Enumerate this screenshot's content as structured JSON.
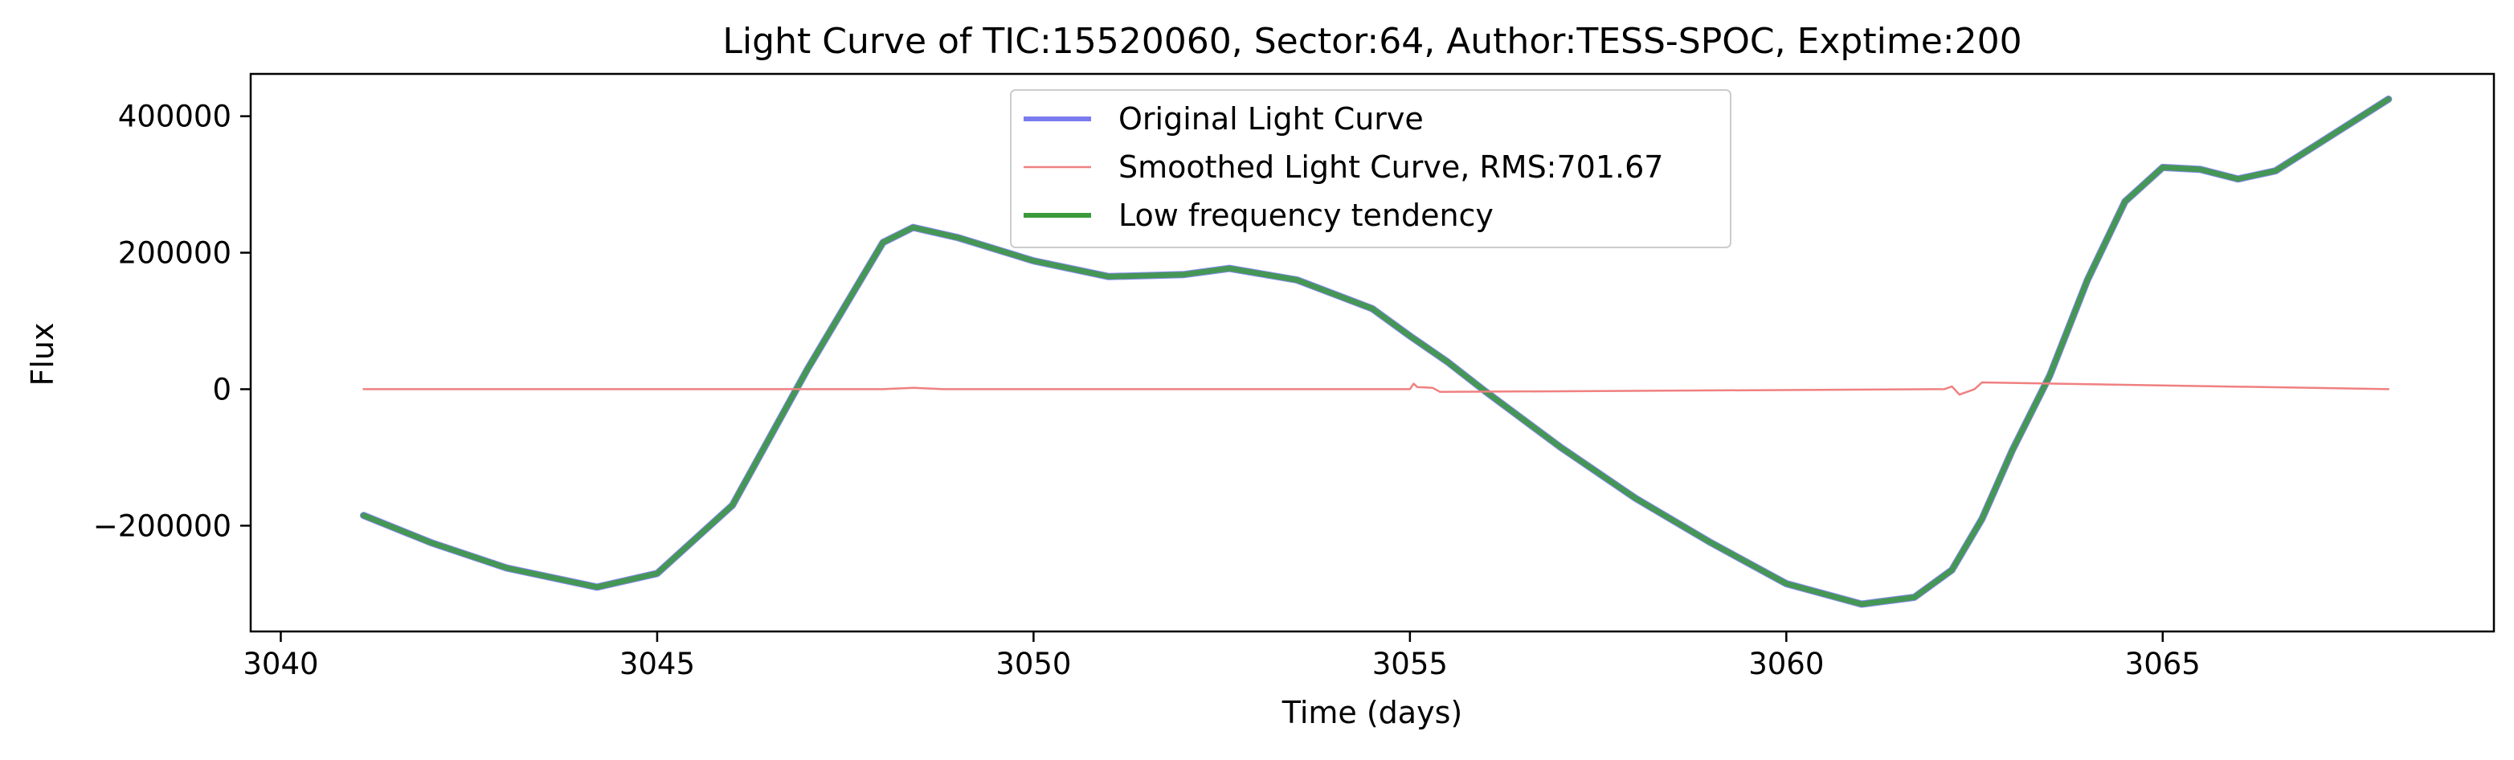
{
  "chart_data": {
    "type": "line",
    "title": "Light Curve of TIC:15520060, Sector:64, Author:TESS-SPOC, Exptime:200",
    "xlabel": "Time (days)",
    "ylabel": "Flux",
    "xlim": [
      3039.6,
      3069.4
    ],
    "ylim": [
      -355000,
      462000
    ],
    "x_ticks": [
      3040,
      3045,
      3050,
      3055,
      3060,
      3065
    ],
    "x_tick_labels": [
      "3040",
      "3045",
      "3050",
      "3055",
      "3060",
      "3065"
    ],
    "y_ticks": [
      -200000,
      0,
      200000,
      400000
    ],
    "y_tick_labels": [
      "−200000",
      "0",
      "200000",
      "400000"
    ],
    "grid": false,
    "legend_position": "top-center",
    "series": [
      {
        "name": "Original Light Curve",
        "color": "#7b7bf0",
        "x": [
          3041.1,
          3042.0,
          3043.0,
          3044.2,
          3045.0,
          3046.0,
          3047.0,
          3048.0,
          3048.4,
          3049.0,
          3050.0,
          3051.0,
          3052.0,
          3052.6,
          3053.5,
          3054.5,
          3055.0,
          3055.5,
          3056.0,
          3057.0,
          3058.0,
          3059.0,
          3060.0,
          3061.0,
          3061.7,
          3062.2,
          3062.6,
          3063.0,
          3063.5,
          3064.0,
          3064.5,
          3065.0,
          3065.5,
          3066.0,
          3066.5,
          3067.0,
          3067.5,
          3068.0
        ],
        "values": [
          -185000,
          -225000,
          -262000,
          -290000,
          -270000,
          -170000,
          30000,
          215000,
          237000,
          222000,
          188000,
          165000,
          168000,
          177000,
          160000,
          118000,
          78000,
          40000,
          -3000,
          -85000,
          -160000,
          -225000,
          -285000,
          -315000,
          -305000,
          -265000,
          -190000,
          -90000,
          20000,
          160000,
          275000,
          325000,
          322000,
          308000,
          320000,
          355000,
          390000,
          425000
        ]
      },
      {
        "name": "Smoothed Light Curve, RMS:701.67",
        "color": "#f08080",
        "x": [
          3041.1,
          3048.0,
          3048.4,
          3048.8,
          3055.0,
          3055.05,
          3055.1,
          3055.3,
          3055.4,
          3062.1,
          3062.2,
          3062.3,
          3062.5,
          3062.6,
          3068.0
        ],
        "values": [
          0,
          0,
          2000,
          0,
          0,
          8000,
          3000,
          2000,
          -4000,
          0,
          4000,
          -8000,
          0,
          10000,
          0
        ]
      },
      {
        "name": "Low frequency tendency",
        "color": "#3a9a3a",
        "x": [
          3041.1,
          3042.0,
          3043.0,
          3044.2,
          3045.0,
          3046.0,
          3047.0,
          3048.0,
          3048.4,
          3049.0,
          3050.0,
          3051.0,
          3052.0,
          3052.6,
          3053.5,
          3054.5,
          3055.0,
          3055.5,
          3056.0,
          3057.0,
          3058.0,
          3059.0,
          3060.0,
          3061.0,
          3061.7,
          3062.2,
          3062.6,
          3063.0,
          3063.5,
          3064.0,
          3064.5,
          3065.0,
          3065.5,
          3066.0,
          3066.5,
          3067.0,
          3067.5,
          3068.0
        ],
        "values": [
          -185000,
          -225000,
          -262000,
          -290000,
          -270000,
          -170000,
          30000,
          215000,
          237000,
          222000,
          188000,
          165000,
          168000,
          177000,
          160000,
          118000,
          78000,
          40000,
          -3000,
          -85000,
          -160000,
          -225000,
          -285000,
          -315000,
          -305000,
          -265000,
          -190000,
          -90000,
          20000,
          160000,
          275000,
          325000,
          322000,
          308000,
          320000,
          355000,
          390000,
          425000
        ]
      }
    ]
  }
}
